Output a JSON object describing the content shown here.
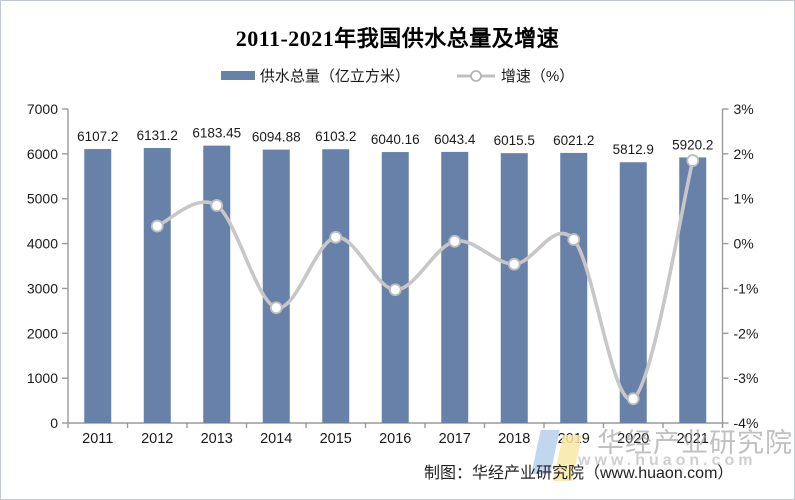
{
  "title": "2011-2021年我国供水总量及增速",
  "legend_items": [
    {
      "label": "供水总量（亿立方米）",
      "type": "bar"
    },
    {
      "label": "增速（%）",
      "type": "line"
    }
  ],
  "chart_data": {
    "type": "bar+line",
    "categories": [
      "2011",
      "2012",
      "2013",
      "2014",
      "2015",
      "2016",
      "2017",
      "2018",
      "2019",
      "2020",
      "2021"
    ],
    "series": [
      {
        "name": "供水总量（亿立方米）",
        "type": "bar",
        "axis": "left",
        "values": [
          6107.2,
          6131.2,
          6183.45,
          6094.88,
          6103.2,
          6040.16,
          6043.4,
          6015.5,
          6021.2,
          5812.9,
          5920.2
        ]
      },
      {
        "name": "增速（%）",
        "type": "line",
        "axis": "right",
        "values": [
          null,
          0.39,
          0.85,
          -1.43,
          0.14,
          -1.03,
          0.05,
          -0.46,
          0.09,
          -3.46,
          1.85
        ]
      }
    ],
    "bar_labels": [
      "6107.2",
      "6131.2",
      "6183.45",
      "6094.88",
      "6103.2",
      "6040.16",
      "6043.4",
      "6015.5",
      "6021.2",
      "5812.9",
      "5920.2"
    ],
    "left_axis": {
      "min": 0,
      "max": 7000,
      "step": 1000,
      "ticks": [
        "0",
        "1000",
        "2000",
        "3000",
        "4000",
        "5000",
        "6000",
        "7000"
      ]
    },
    "right_axis": {
      "min": -4,
      "max": 3,
      "step": 1,
      "ticks": [
        "-4%",
        "-3%",
        "-2%",
        "-1%",
        "0%",
        "1%",
        "2%",
        "3%"
      ]
    },
    "grid": false,
    "legend_position": "top",
    "colors": {
      "bar": "#6781a8",
      "line": "#c7c7c7",
      "marker_fill": "#ffffff",
      "marker_stroke": "#bdbdbd",
      "axis": "#9a9a9a",
      "tick_label": "#1a1a1a",
      "bar_label": "#1a1a1a"
    }
  },
  "watermark": {
    "company": "华经产业研究院",
    "site": "www.huaon.com",
    "logo_colors": [
      "#b5d0ec",
      "#f8e9a4"
    ]
  },
  "caption": "制图：华经产业研究院（www.huaon.com）"
}
